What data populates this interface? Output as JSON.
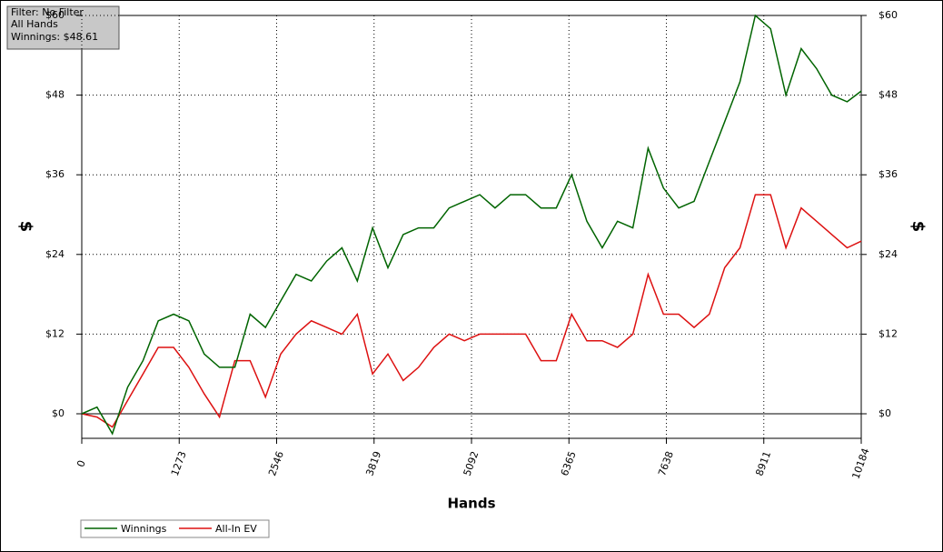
{
  "chart_data": {
    "type": "line",
    "info": [
      "Filter: No Filter",
      "All Hands",
      "Winnings: $48.61"
    ],
    "x_label": "Hands",
    "y_label": "$",
    "y2_label": "$",
    "x": [
      0,
      200,
      400,
      600,
      800,
      1000,
      1200,
      1400,
      1600,
      1800,
      2000,
      2200,
      2400,
      2600,
      2800,
      3000,
      3200,
      3400,
      3600,
      3800,
      4000,
      4200,
      4400,
      4600,
      4800,
      5000,
      5200,
      5400,
      5600,
      5800,
      6000,
      6200,
      6400,
      6600,
      6800,
      7000,
      7200,
      7400,
      7600,
      7800,
      8000,
      8200,
      8400,
      8600,
      8800,
      9000,
      9200,
      9400,
      9600,
      9800,
      10000,
      10184
    ],
    "series": [
      {
        "name": "Winnings",
        "color": "#006400",
        "values": [
          0,
          1,
          -3,
          4,
          8,
          14,
          15,
          14,
          9,
          7,
          7,
          15,
          13,
          17,
          21,
          20,
          23,
          25,
          20,
          28,
          22,
          27,
          28,
          28,
          31,
          32,
          33,
          31,
          33,
          33,
          31,
          31,
          36,
          29,
          25,
          29,
          28,
          40,
          34,
          31,
          32,
          38,
          44,
          50,
          60,
          58,
          48,
          55,
          52,
          48,
          47,
          48.61
        ]
      },
      {
        "name": "All-In EV",
        "color": "#dd1111",
        "values": [
          0,
          -0.5,
          -2,
          2,
          6,
          10,
          10,
          7,
          3,
          -0.5,
          8,
          8,
          2.5,
          9,
          12,
          14,
          13,
          12,
          15,
          6,
          9,
          5,
          7,
          10,
          12,
          11,
          12,
          12,
          12,
          12,
          8,
          8,
          15,
          11,
          11,
          10,
          12,
          21,
          15,
          15,
          13,
          15,
          22,
          25,
          33,
          33,
          25,
          31,
          29,
          27,
          25,
          26
        ]
      }
    ],
    "xlim": [
      0,
      10184
    ],
    "xticks": [
      0,
      1273,
      2546,
      3819,
      5092,
      6365,
      7638,
      8911,
      10184
    ],
    "ylim": [
      -3.7,
      60
    ],
    "yticks": [
      {
        "value": 0,
        "label": "$0"
      },
      {
        "value": 12,
        "label": "$12"
      },
      {
        "value": 24,
        "label": "$24"
      },
      {
        "value": 36,
        "label": "$36"
      },
      {
        "value": 48,
        "label": "$48"
      },
      {
        "value": 60,
        "label": "$60"
      }
    ],
    "grid": true
  }
}
